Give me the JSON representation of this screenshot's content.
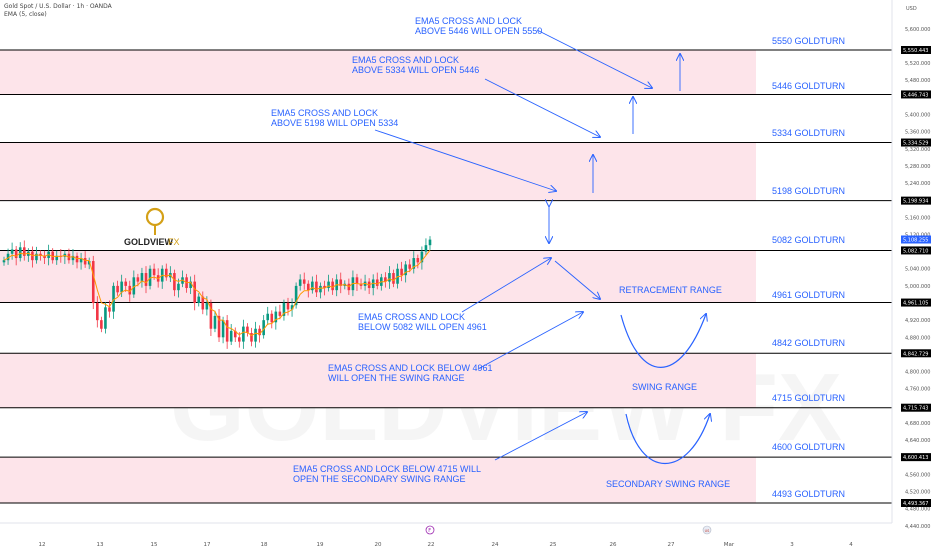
{
  "header": {
    "symbol": "Gold Spot / U.S. Dollar · 1h · OANDA",
    "indicator": "EMA (5, close)"
  },
  "currency": "USD",
  "logo": {
    "brand": "GOLDVIEW",
    "suffix": "FX",
    "letter": "G"
  },
  "watermark": "GOLDVIEW FX",
  "colors": {
    "accent": "#2962ff",
    "zone": "#fde4ea",
    "level_line": "#000000",
    "candle_up": "#089981",
    "candle_down": "#f23645",
    "ema": "#ff9800",
    "gold": "#d4a017"
  },
  "chart_data": {
    "type": "candlestick",
    "timeframe": "1h",
    "ylim": [
      4420,
      5620
    ],
    "x_ticks": [
      "12",
      "13",
      "15",
      "17",
      "18",
      "19",
      "20",
      "22",
      "24",
      "25",
      "26",
      "27",
      "Mar",
      "3",
      "4"
    ],
    "y_ticks": [
      4440,
      4480,
      4520,
      4560,
      4640,
      4680,
      4760,
      4800,
      4840,
      4880,
      4920,
      5000,
      5040,
      5080,
      5120,
      5160,
      5240,
      5280,
      5320,
      5360,
      5400,
      5480,
      5520,
      5600
    ],
    "price_badges": [
      {
        "value": "5,550.443",
        "y": 5550.443,
        "highlight": false
      },
      {
        "value": "5,446.743",
        "y": 5446.743,
        "highlight": false
      },
      {
        "value": "5,334.529",
        "y": 5334.529,
        "highlight": false
      },
      {
        "value": "5,198.934",
        "y": 5198.934,
        "highlight": false
      },
      {
        "value": "5,108.255",
        "y": 5108.255,
        "highlight": true
      },
      {
        "value": "5,082.710",
        "y": 5082.71,
        "highlight": false
      },
      {
        "value": "4,961.105",
        "y": 4961.105,
        "highlight": false
      },
      {
        "value": "4,842.729",
        "y": 4842.729,
        "highlight": false
      },
      {
        "value": "4,715.743",
        "y": 4715.743,
        "highlight": false
      },
      {
        "value": "4,600.413",
        "y": 4600.413,
        "highlight": false
      },
      {
        "value": "4,493.367",
        "y": 4493.367,
        "highlight": false
      }
    ],
    "levels": [
      {
        "label": "5550 GOLDTURN",
        "value": 5550.443
      },
      {
        "label": "5446 GOLDTURN",
        "value": 5446.743
      },
      {
        "label": "5334 GOLDTURN",
        "value": 5334.529
      },
      {
        "label": "5198 GOLDTURN",
        "value": 5198.934
      },
      {
        "label": "5082 GOLDTURN",
        "value": 5082.71
      },
      {
        "label": "4961 GOLDTURN",
        "value": 4961.105
      },
      {
        "label": "4842 GOLDTURN",
        "value": 4842.729
      },
      {
        "label": "4715 GOLDTURN",
        "value": 4715.743
      },
      {
        "label": "4600 GOLDTURN",
        "value": 4600.413
      },
      {
        "label": "4493 GOLDTURN",
        "value": 4493.367
      }
    ],
    "zones": [
      [
        5446.743,
        5550.443
      ],
      [
        5198.934,
        5334.529
      ],
      [
        4961.105,
        5082.71
      ],
      [
        4715.743,
        4842.729
      ],
      [
        4493.367,
        4600.413
      ]
    ],
    "annotations": [
      {
        "lines": [
          "EMA5 CROSS AND LOCK",
          "ABOVE 5446 WILL OPEN 5550"
        ]
      },
      {
        "lines": [
          "EMA5 CROSS AND LOCK",
          "ABOVE 5334 WILL OPEN 5446"
        ]
      },
      {
        "lines": [
          "EMA5 CROSS AND LOCK",
          "ABOVE 5198 WILL OPEN 5334"
        ]
      },
      {
        "lines": [
          "EMA5 CROSS AND LOCK",
          "BELOW 5082 WILL OPEN 4961"
        ]
      },
      {
        "lines": [
          "EMA5 CROSS AND LOCK BELOW 4961",
          "WILL OPEN THE SWING RANGE"
        ]
      },
      {
        "lines": [
          "EMA5 CROSS AND LOCK BELOW 4715 WILL",
          "OPEN THE SECONDARY SWING RANGE"
        ]
      }
    ],
    "range_labels": [
      "RETRACEMENT RANGE",
      "SWING RANGE",
      "SECONDARY SWING RANGE"
    ],
    "candles_close_path": [
      5060,
      5075,
      5085,
      5065,
      5090,
      5070,
      5080,
      5060,
      5075,
      5070,
      5065,
      5080,
      5060,
      5070,
      5068,
      5075,
      5060,
      5070,
      5055,
      5065,
      5050,
      5058,
      4960,
      4920,
      4900,
      4950,
      4940,
      5000,
      4985,
      5010,
      5000,
      4980,
      5020,
      5010,
      5030,
      5000,
      5040,
      5025,
      5010,
      5040,
      5020,
      5030,
      4990,
      5005,
      5020,
      4995,
      5010,
      4960,
      4975,
      4945,
      4960,
      4900,
      4930,
      4880,
      4920,
      4870,
      4895,
      4880,
      4870,
      4905,
      4890,
      4870,
      4900,
      4885,
      4920,
      4935,
      4915,
      4940,
      4930,
      4960,
      4945,
      4955,
      5000,
      5015,
      5005,
      4990,
      5010,
      4985,
      5000,
      4995,
      5010,
      4990,
      5015,
      5000,
      5005,
      4990,
      5020,
      5005,
      5000,
      5010,
      4995,
      5015,
      5000,
      5020,
      5010,
      5030,
      5005,
      5040,
      5025,
      5050,
      5040,
      5065,
      5055,
      5080,
      5095,
      5108
    ]
  },
  "badges": {
    "event_day": "F",
    "flag": "US"
  }
}
